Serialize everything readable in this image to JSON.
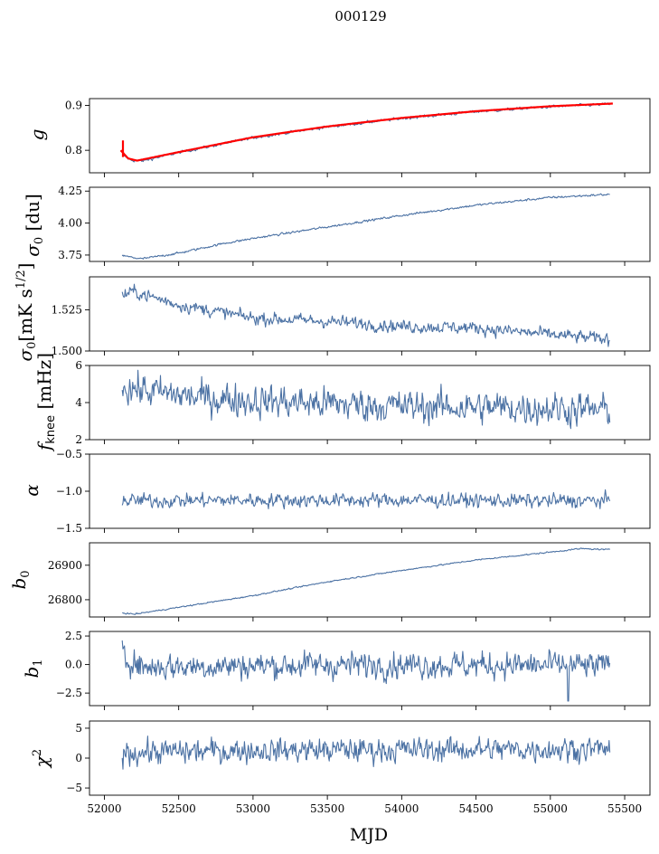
{
  "figure": {
    "suptitle": "000129",
    "xlabel": "MJD",
    "colors": {
      "line": "#4c72a4",
      "fit": "#ff0000",
      "axes": "#000000"
    }
  },
  "chart_data": [
    {
      "type": "line",
      "ylabel": "g",
      "xlim": [
        51900,
        55670
      ],
      "ylim": [
        0.75,
        0.915
      ],
      "yticks": [
        0.8,
        0.9
      ],
      "yticklabels": [
        "0.8",
        "0.9"
      ],
      "series": [
        {
          "style": "noisy",
          "color": "#4c72a4",
          "x": [
            52120,
            52180,
            52250,
            52500,
            53000,
            53500,
            54000,
            54500,
            55000,
            55400
          ],
          "y": [
            0.79,
            0.778,
            0.776,
            0.795,
            0.828,
            0.852,
            0.871,
            0.886,
            0.897,
            0.903
          ],
          "noise": 0.0015
        },
        {
          "style": "fit",
          "color": "#ff0000",
          "x": [
            52110,
            52160,
            52220,
            52500,
            53000,
            53500,
            54000,
            54500,
            55000,
            55420
          ],
          "y": [
            0.8,
            0.782,
            0.777,
            0.796,
            0.829,
            0.853,
            0.872,
            0.887,
            0.898,
            0.904
          ],
          "spike": {
            "x": 52125,
            "y0": 0.785,
            "y1": 0.822
          }
        }
      ]
    },
    {
      "type": "line",
      "ylabel": "σ0 [du]",
      "xlim": [
        51900,
        55670
      ],
      "ylim": [
        3.7,
        4.28
      ],
      "yticks": [
        3.75,
        4.0,
        4.25
      ],
      "yticklabels": [
        "3.75",
        "4.00",
        "4.25"
      ],
      "series": [
        {
          "style": "noisy",
          "color": "#4c72a4",
          "x": [
            52120,
            52250,
            52500,
            52800,
            53000,
            53500,
            54000,
            54500,
            55000,
            55400
          ],
          "y": [
            3.745,
            3.72,
            3.765,
            3.84,
            3.88,
            3.97,
            4.06,
            4.14,
            4.2,
            4.225
          ],
          "noise": 0.004
        }
      ]
    },
    {
      "type": "line",
      "ylabel": "σ0[mK s^1/2]",
      "xlim": [
        51900,
        55670
      ],
      "ylim": [
        1.5,
        1.545
      ],
      "yticks": [
        1.5,
        1.525
      ],
      "yticklabels": [
        "1.500",
        "1.525"
      ],
      "series": [
        {
          "style": "noisy",
          "color": "#4c72a4",
          "x": [
            52120,
            52200,
            52500,
            53000,
            53500,
            54000,
            54500,
            55000,
            55400
          ],
          "y": [
            1.534,
            1.536,
            1.528,
            1.52,
            1.518,
            1.515,
            1.514,
            1.51,
            1.507
          ],
          "noise": 0.0018
        }
      ]
    },
    {
      "type": "line",
      "ylabel": "fknee [mHz]",
      "xlim": [
        51900,
        55670
      ],
      "ylim": [
        2,
        6
      ],
      "yticks": [
        2,
        4,
        6
      ],
      "yticklabels": [
        "2",
        "4",
        "6"
      ],
      "series": [
        {
          "style": "noisy",
          "color": "#4c72a4",
          "x": [
            52120,
            52300,
            52600,
            53000,
            53500,
            54000,
            54500,
            55000,
            55400
          ],
          "y": [
            4.9,
            4.6,
            4.3,
            4.1,
            3.95,
            3.8,
            3.75,
            3.7,
            3.6
          ],
          "noise": 0.42
        }
      ]
    },
    {
      "type": "line",
      "ylabel": "α",
      "xlim": [
        51900,
        55670
      ],
      "ylim": [
        -1.5,
        -0.5
      ],
      "yticks": [
        -1.5,
        -1.0,
        -0.5
      ],
      "yticklabels": [
        "−1.5",
        "−1.0",
        "−0.5"
      ],
      "series": [
        {
          "style": "noisy",
          "color": "#4c72a4",
          "x": [
            52120,
            53000,
            54000,
            55000,
            55400
          ],
          "y": [
            -1.13,
            -1.12,
            -1.12,
            -1.13,
            -1.13
          ],
          "noise": 0.045
        }
      ]
    },
    {
      "type": "line",
      "ylabel": "b0",
      "xlim": [
        51900,
        55670
      ],
      "ylim": [
        26750,
        26965
      ],
      "yticks": [
        26800,
        26900
      ],
      "yticklabels": [
        "26800",
        "26900"
      ],
      "series": [
        {
          "style": "noisy",
          "color": "#4c72a4",
          "x": [
            52120,
            52200,
            52500,
            53000,
            53500,
            54000,
            54500,
            55000,
            55200,
            55400
          ],
          "y": [
            26762,
            26758,
            26778,
            26812,
            26852,
            26885,
            26915,
            26938,
            26948,
            26945
          ],
          "noise": 0.9
        }
      ]
    },
    {
      "type": "line",
      "ylabel": "b1",
      "xlim": [
        51900,
        55670
      ],
      "ylim": [
        -3.6,
        2.9
      ],
      "yticks": [
        -2.5,
        0.0,
        2.5
      ],
      "yticklabels": [
        "−2.5",
        "0.0",
        "2.5"
      ],
      "series": [
        {
          "style": "noisy",
          "color": "#4c72a4",
          "x": [
            52120,
            52150,
            52250,
            53000,
            54000,
            55000,
            55400
          ],
          "y": [
            2.3,
            0.6,
            -0.2,
            -0.1,
            0.0,
            -0.1,
            -0.1
          ],
          "noise": 0.55
        }
      ]
    },
    {
      "type": "line",
      "ylabel": "χ2",
      "xlim": [
        51900,
        55670
      ],
      "ylim": [
        -6.2,
        6.2
      ],
      "yticks": [
        -5,
        0,
        5
      ],
      "yticklabels": [
        "−5",
        "0",
        "5"
      ],
      "xticks": [
        52000,
        52500,
        53000,
        53500,
        54000,
        54500,
        55000,
        55500
      ],
      "xticklabels": [
        "52000",
        "52500",
        "53000",
        "53500",
        "54000",
        "54500",
        "55000",
        "55500"
      ],
      "series": [
        {
          "style": "noisy",
          "color": "#4c72a4",
          "x": [
            52120,
            53000,
            54000,
            55000,
            55400
          ],
          "y": [
            0.9,
            1.3,
            1.4,
            1.5,
            1.6
          ],
          "noise": 0.95
        }
      ]
    }
  ]
}
